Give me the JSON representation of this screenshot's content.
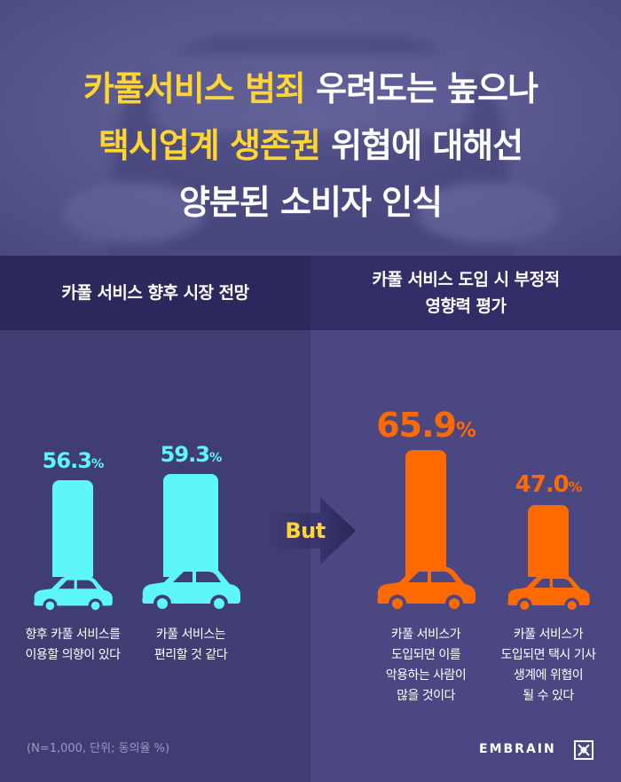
{
  "header": {
    "line1_hl": "카풀서비스 범죄",
    "line1_rest": " 우려도는 높으나",
    "line2_hl": "택시업계 생존권",
    "line2_rest": " 위협에 대해선",
    "line3": "양분된 소비자 인식"
  },
  "sections": {
    "left_title": "카풀 서비스 향후 시장 전망",
    "right_title_l1": "카풀 서비스 도입 시 부정적",
    "right_title_l2": "영향력 평가"
  },
  "but_label": "But",
  "footnote": "(N=1,000, 단위; 동의율 %)",
  "logo": "EMBRAIN",
  "colors": {
    "positive": "#5ef7f9",
    "negative": "#ff6a00",
    "highlight": "#ffd631",
    "background": "#3f3d72"
  },
  "chart_data": {
    "type": "bar",
    "unit": "%",
    "items": [
      {
        "value": 56.3,
        "value_text": "56.3",
        "caption_l1": "향후 카풀 서비스를",
        "caption_l2": "이용할 의향이 있다",
        "group": "left"
      },
      {
        "value": 59.3,
        "value_text": "59.3",
        "caption_l1": "카풀 서비스는",
        "caption_l2": "편리할 것 같다",
        "group": "left"
      },
      {
        "value": 65.9,
        "value_text": "65.9",
        "caption_l1": "카풀 서비스가",
        "caption_l2": "도입되면 이를",
        "caption_l3": "악용하는 사람이",
        "caption_l4": "많을 것이다",
        "group": "right"
      },
      {
        "value": 47.0,
        "value_text": "47.0",
        "caption_l1": "카풀 서비스가",
        "caption_l2": "도입되면 택시 기사",
        "caption_l3": "생계에 위협이",
        "caption_l4": "될 수 있다",
        "group": "right"
      }
    ]
  }
}
